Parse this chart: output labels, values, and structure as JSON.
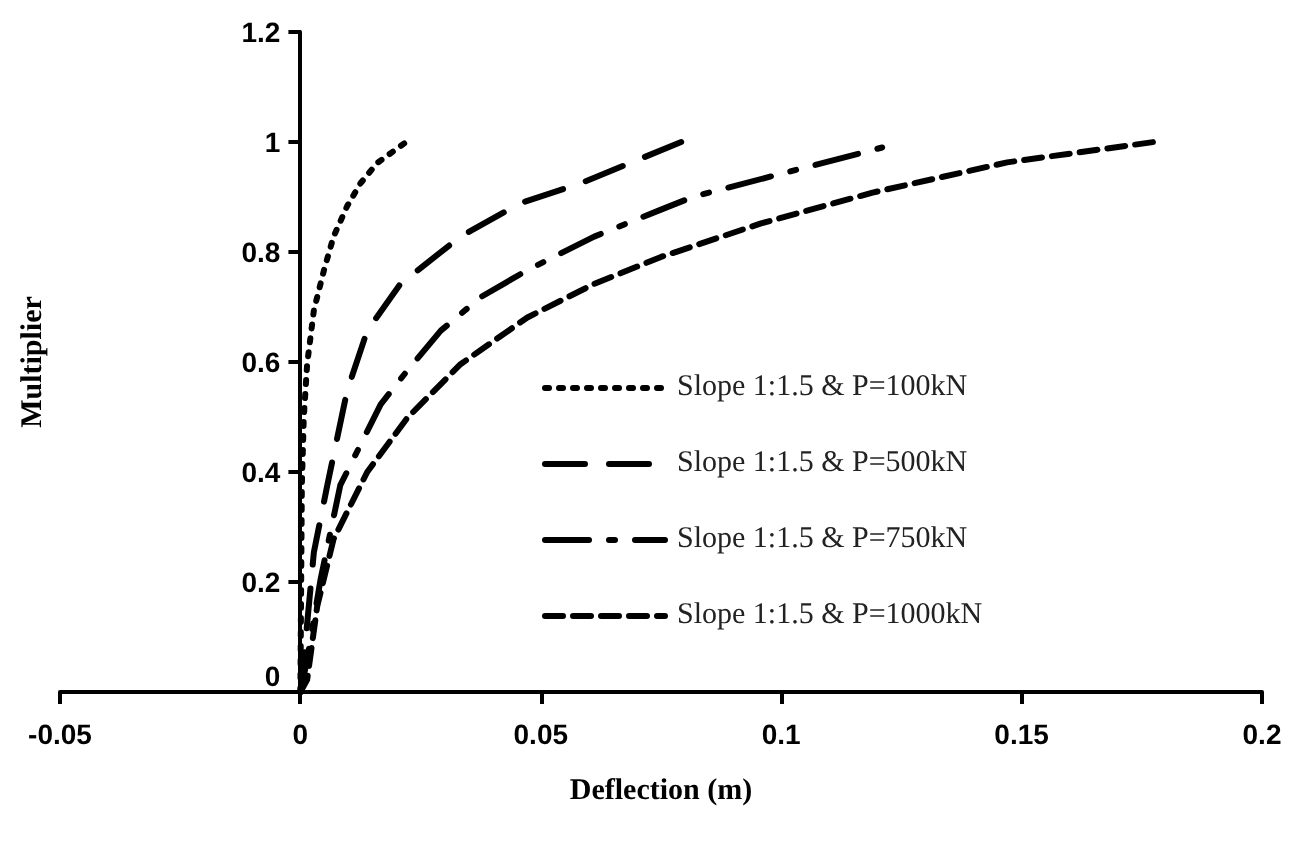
{
  "chart_data": {
    "type": "line",
    "xlabel": "Deflection (m)",
    "ylabel": "Multiplier",
    "xlim": [
      -0.05,
      0.2
    ],
    "xticks": [
      -0.05,
      0,
      0.05,
      0.1,
      0.15,
      0.2
    ],
    "ylim": [
      0,
      1.2
    ],
    "yticks": [
      0,
      0.2,
      0.4,
      0.6,
      0.8,
      1,
      1.2
    ],
    "grid": false,
    "legend": "right",
    "marker": "none",
    "series": [
      {
        "name": "Slope 1:1.5 & P=100kN",
        "color": "#000000",
        "line_style": "dotted",
        "x": [
          0,
          0.0003,
          0.0007,
          0.0014,
          0.0028,
          0.0049,
          0.0069,
          0.0097,
          0.0125,
          0.016,
          0.022
        ],
        "values": [
          0,
          0.376,
          0.498,
          0.596,
          0.694,
          0.767,
          0.828,
          0.883,
          0.925,
          0.962,
          1.0
        ]
      },
      {
        "name": "Slope 1:1.5 & P=500kN",
        "color": "#000000",
        "line_style": "longdash",
        "x": [
          0,
          0.0007,
          0.0028,
          0.0056,
          0.0097,
          0.0139,
          0.0208,
          0.0333,
          0.0458,
          0.0583,
          0.0792
        ],
        "values": [
          0,
          0.059,
          0.254,
          0.376,
          0.547,
          0.657,
          0.742,
          0.828,
          0.889,
          0.925,
          1.0
        ]
      },
      {
        "name": "Slope 1:1.5 & P=750kN",
        "color": "#000000",
        "line_style": "dashdot",
        "x": [
          0,
          0.0014,
          0.0042,
          0.0083,
          0.0167,
          0.0222,
          0.0292,
          0.0375,
          0.0472,
          0.0611,
          0.075,
          0.0819,
          0.121
        ],
        "values": [
          0,
          0.059,
          0.205,
          0.376,
          0.523,
          0.584,
          0.657,
          0.718,
          0.767,
          0.828,
          0.877,
          0.901,
          0.99
        ]
      },
      {
        "name": "Slope 1:1.5 & P=1000kN",
        "color": "#000000",
        "line_style": "dashed",
        "x": [
          0,
          0.0014,
          0.0035,
          0.0069,
          0.0139,
          0.0222,
          0.0333,
          0.0472,
          0.0611,
          0.075,
          0.0958,
          0.119,
          0.147,
          0.1775
        ],
        "values": [
          0,
          0.022,
          0.156,
          0.278,
          0.4,
          0.498,
          0.596,
          0.681,
          0.742,
          0.791,
          0.852,
          0.908,
          0.963,
          1.0
        ]
      }
    ]
  }
}
